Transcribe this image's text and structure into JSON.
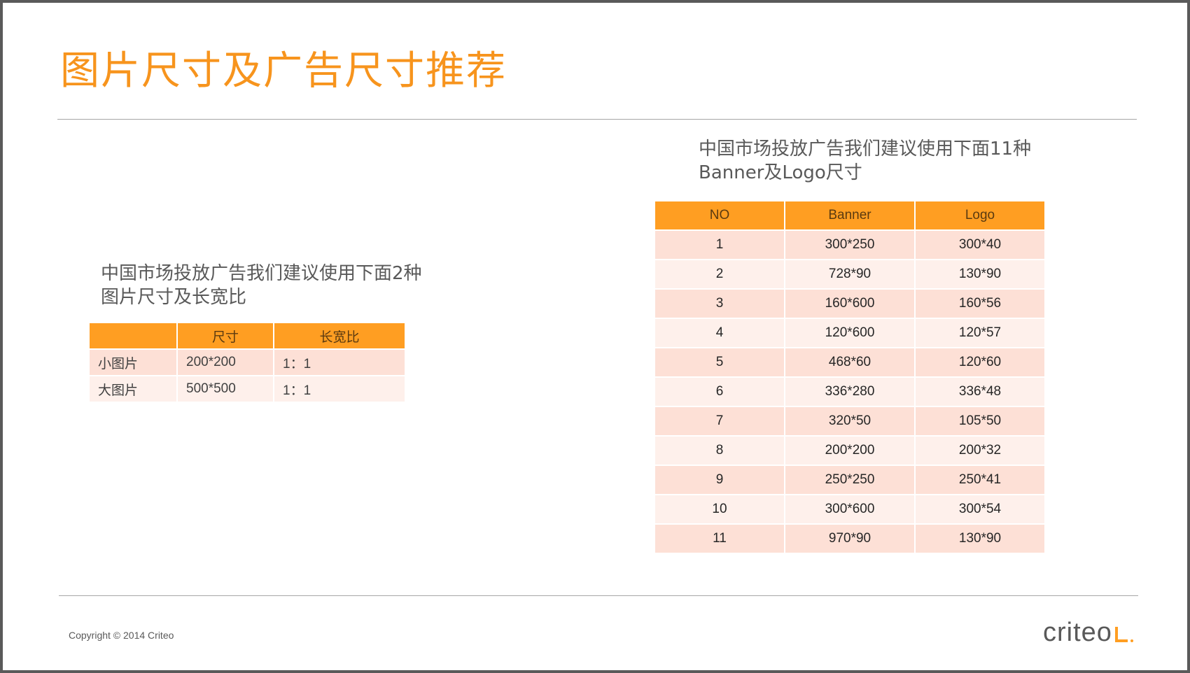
{
  "title": "图片尺寸及广告尺寸推荐",
  "left_caption": "中国市场投放广告我们建议使用下面2种图片尺寸及长宽比",
  "left_table": {
    "headers": [
      "",
      "尺寸",
      "长宽比"
    ],
    "rows": [
      [
        "小图片",
        "200*200",
        "1：1"
      ],
      [
        "大图片",
        "500*500",
        "1：1"
      ]
    ]
  },
  "right_caption": "中国市场投放广告我们建议使用下面11种Banner及Logo尺寸",
  "right_table": {
    "headers": [
      "NO",
      "Banner",
      "Logo"
    ],
    "rows": [
      [
        "1",
        "300*250",
        "300*40"
      ],
      [
        "2",
        "728*90",
        "130*90"
      ],
      [
        "3",
        "160*600",
        "160*56"
      ],
      [
        "4",
        "120*600",
        "120*57"
      ],
      [
        "5",
        "468*60",
        "120*60"
      ],
      [
        "6",
        "336*280",
        "336*48"
      ],
      [
        "7",
        "320*50",
        "105*50"
      ],
      [
        "8",
        "200*200",
        "200*32"
      ],
      [
        "9",
        "250*250",
        "250*41"
      ],
      [
        "10",
        "300*600",
        "300*54"
      ],
      [
        "11",
        "970*90",
        "130*90"
      ]
    ]
  },
  "footer": {
    "copyright": "Copyright © 2014 Criteo",
    "logo_text": "criteo"
  },
  "colors": {
    "accent": "#f7941d",
    "header_fill": "#ff9e22",
    "row_odd": "#fde0d6",
    "row_even": "#fef0eb"
  }
}
